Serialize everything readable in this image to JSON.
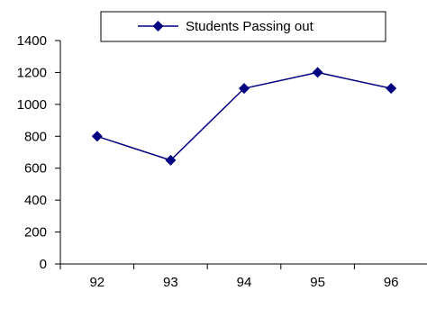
{
  "chart_data": {
    "type": "line",
    "categories": [
      "92",
      "93",
      "94",
      "95",
      "96"
    ],
    "series": [
      {
        "name": "Students Passing out",
        "values": [
          800,
          650,
          1100,
          1200,
          1100
        ],
        "color": "#000080",
        "marker": "diamond"
      }
    ],
    "ylim": [
      0,
      1400
    ],
    "y_ticks": [
      "0",
      "200",
      "400",
      "600",
      "800",
      "1000",
      "1200",
      "1400"
    ],
    "grid": false,
    "legend_position": "top"
  }
}
